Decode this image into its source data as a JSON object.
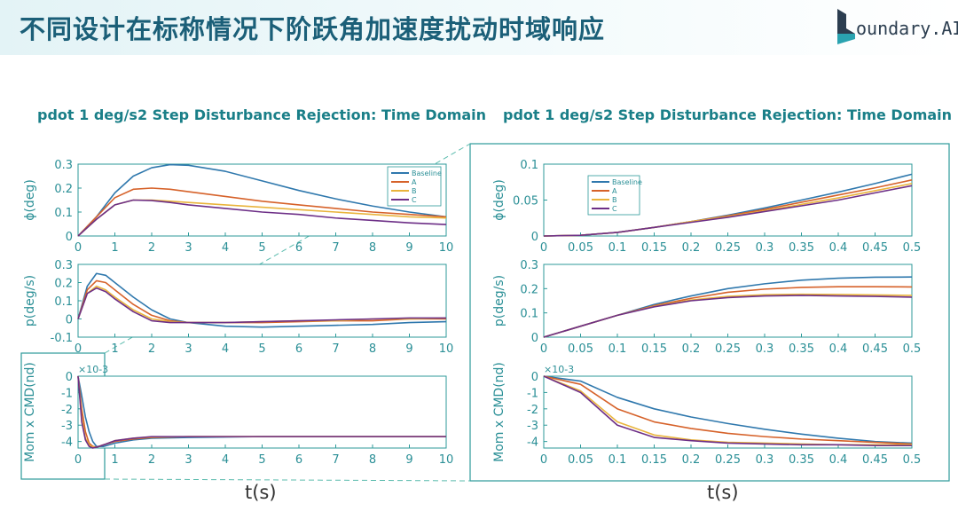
{
  "slide": {
    "title": "不同设计在标称情况下阶跃角加速度扰动时域响应",
    "logo_text": "oundary.AI"
  },
  "colors": {
    "Baseline": "#2f78ad",
    "A": "#d6622a",
    "B": "#e9b43c",
    "C": "#6d2f87",
    "axis": "#2c9a9a",
    "accent": "#1b5f78"
  },
  "chart_data": [
    {
      "panel": "left",
      "type": "line",
      "title": "pdot 1 deg/s2 Step Disturbance Rejection: Time Domain",
      "xlabel": "t(s)",
      "subplots": [
        {
          "ylabel": "ϕ(deg)",
          "xlim": [
            0,
            10
          ],
          "ylim": [
            0,
            0.3
          ],
          "yticks": [
            "0",
            "0.1",
            "0.2",
            "0.3"
          ],
          "xticks": [
            "0",
            "1",
            "2",
            "3",
            "4",
            "5",
            "6",
            "7",
            "8",
            "9",
            "10"
          ],
          "legend": [
            "Baseline",
            "A",
            "B",
            "C"
          ],
          "legend_position": "top-right",
          "x": [
            0,
            0.5,
            1,
            1.5,
            2,
            2.5,
            3,
            4,
            5,
            6,
            7,
            8,
            9,
            10
          ],
          "series": [
            {
              "name": "Baseline",
              "values": [
                0,
                0.08,
                0.18,
                0.25,
                0.285,
                0.298,
                0.295,
                0.27,
                0.23,
                0.19,
                0.155,
                0.125,
                0.1,
                0.08
              ]
            },
            {
              "name": "A",
              "values": [
                0,
                0.08,
                0.16,
                0.195,
                0.2,
                0.195,
                0.185,
                0.165,
                0.145,
                0.13,
                0.115,
                0.1,
                0.09,
                0.08
              ]
            },
            {
              "name": "B",
              "values": [
                0,
                0.07,
                0.13,
                0.15,
                0.15,
                0.145,
                0.14,
                0.13,
                0.12,
                0.11,
                0.1,
                0.09,
                0.08,
                0.075
              ]
            },
            {
              "name": "C",
              "values": [
                0,
                0.07,
                0.13,
                0.15,
                0.148,
                0.14,
                0.13,
                0.115,
                0.1,
                0.09,
                0.075,
                0.065,
                0.055,
                0.048
              ]
            }
          ]
        },
        {
          "ylabel": "p(deg/s)",
          "xlim": [
            0,
            10
          ],
          "ylim": [
            -0.1,
            0.3
          ],
          "yticks": [
            "-0.1",
            "0",
            "0.1",
            "0.2",
            "0.3"
          ],
          "xticks": [
            "0",
            "1",
            "2",
            "3",
            "4",
            "5",
            "6",
            "7",
            "8",
            "9",
            "10"
          ],
          "x": [
            0,
            0.25,
            0.5,
            0.75,
            1,
            1.5,
            2,
            2.5,
            3,
            4,
            5,
            6,
            7,
            8,
            9,
            10
          ],
          "series": [
            {
              "name": "Baseline",
              "values": [
                0,
                0.18,
                0.25,
                0.24,
                0.2,
                0.12,
                0.05,
                0,
                -0.02,
                -0.04,
                -0.045,
                -0.04,
                -0.035,
                -0.03,
                -0.02,
                -0.015
              ]
            },
            {
              "name": "A",
              "values": [
                0,
                0.16,
                0.21,
                0.2,
                0.16,
                0.08,
                0.02,
                -0.01,
                -0.02,
                -0.02,
                -0.02,
                -0.015,
                -0.01,
                -0.01,
                0,
                0
              ]
            },
            {
              "name": "B",
              "values": [
                0,
                0.14,
                0.18,
                0.16,
                0.12,
                0.05,
                0,
                -0.015,
                -0.02,
                -0.02,
                -0.015,
                -0.01,
                -0.01,
                0,
                0,
                0.005
              ]
            },
            {
              "name": "C",
              "values": [
                0,
                0.14,
                0.17,
                0.15,
                0.11,
                0.04,
                -0.01,
                -0.02,
                -0.02,
                -0.02,
                -0.015,
                -0.01,
                -0.005,
                0,
                0.005,
                0.005
              ]
            }
          ]
        },
        {
          "ylabel": "Mom x CMD(nd)",
          "scale": "×10-3",
          "xlim": [
            0,
            10
          ],
          "ylim": [
            -4.4,
            0
          ],
          "yticks": [
            "-4",
            "-3",
            "-2",
            "-1",
            "0"
          ],
          "xticks": [
            "0",
            "1",
            "2",
            "3",
            "4",
            "5",
            "6",
            "7",
            "8",
            "9",
            "10"
          ],
          "x": [
            0,
            0.1,
            0.2,
            0.3,
            0.4,
            0.5,
            0.7,
            1,
            1.5,
            2,
            3,
            5,
            10
          ],
          "series": [
            {
              "name": "Baseline",
              "values": [
                0,
                -1.2,
                -2.5,
                -3.4,
                -4.0,
                -4.3,
                -4.3,
                -4.1,
                -3.9,
                -3.8,
                -3.75,
                -3.7,
                -3.7
              ]
            },
            {
              "name": "A",
              "values": [
                0,
                -2,
                -3.4,
                -4.1,
                -4.3,
                -4.35,
                -4.2,
                -4.0,
                -3.85,
                -3.75,
                -3.7,
                -3.7,
                -3.7
              ]
            },
            {
              "name": "B",
              "values": [
                0,
                -2.6,
                -3.8,
                -4.2,
                -4.35,
                -4.35,
                -4.2,
                -3.95,
                -3.8,
                -3.72,
                -3.7,
                -3.7,
                -3.7
              ]
            },
            {
              "name": "C",
              "values": [
                0,
                -2.8,
                -3.9,
                -4.3,
                -4.4,
                -4.35,
                -4.2,
                -3.95,
                -3.8,
                -3.7,
                -3.7,
                -3.7,
                -3.7
              ]
            }
          ]
        }
      ]
    },
    {
      "panel": "right",
      "type": "line",
      "title": "pdot 1 deg/s2 Step Disturbance Rejection: Time Domain",
      "xlabel": "t(s)",
      "subplots": [
        {
          "ylabel": "ϕ(deg)",
          "xlim": [
            0,
            0.5
          ],
          "ylim": [
            0,
            0.1
          ],
          "yticks": [
            "0",
            "0.05",
            "0.1"
          ],
          "xticks": [
            "0",
            "0.05",
            "0.1",
            "0.15",
            "0.2",
            "0.25",
            "0.3",
            "0.35",
            "0.4",
            "0.45",
            "0.5"
          ],
          "legend": [
            "Baseline",
            "A",
            "B",
            "C"
          ],
          "legend_position": "top-left",
          "x": [
            0,
            0.05,
            0.1,
            0.15,
            0.2,
            0.25,
            0.3,
            0.35,
            0.4,
            0.45,
            0.5
          ],
          "series": [
            {
              "name": "Baseline",
              "values": [
                0,
                0.001,
                0.005,
                0.012,
                0.02,
                0.029,
                0.039,
                0.05,
                0.061,
                0.073,
                0.086
              ]
            },
            {
              "name": "A",
              "values": [
                0,
                0.001,
                0.005,
                0.012,
                0.02,
                0.028,
                0.037,
                0.047,
                0.057,
                0.067,
                0.078
              ]
            },
            {
              "name": "B",
              "values": [
                0,
                0.001,
                0.005,
                0.012,
                0.02,
                0.027,
                0.035,
                0.044,
                0.053,
                0.063,
                0.073
              ]
            },
            {
              "name": "C",
              "values": [
                0,
                0.001,
                0.005,
                0.012,
                0.019,
                0.026,
                0.034,
                0.042,
                0.05,
                0.06,
                0.07
              ]
            }
          ]
        },
        {
          "ylabel": "p(deg/s)",
          "xlim": [
            0,
            0.5
          ],
          "ylim": [
            0,
            0.3
          ],
          "yticks": [
            "0",
            "0.1",
            "0.2",
            "0.3"
          ],
          "xticks": [
            "0",
            "0.05",
            "0.1",
            "0.15",
            "0.2",
            "0.25",
            "0.3",
            "0.35",
            "0.4",
            "0.45",
            "0.5"
          ],
          "x": [
            0,
            0.05,
            0.1,
            0.15,
            0.2,
            0.25,
            0.3,
            0.35,
            0.4,
            0.45,
            0.5
          ],
          "series": [
            {
              "name": "Baseline",
              "values": [
                0,
                0.045,
                0.09,
                0.135,
                0.17,
                0.2,
                0.22,
                0.235,
                0.243,
                0.247,
                0.248
              ]
            },
            {
              "name": "A",
              "values": [
                0,
                0.045,
                0.09,
                0.13,
                0.16,
                0.185,
                0.198,
                0.205,
                0.208,
                0.208,
                0.207
              ]
            },
            {
              "name": "B",
              "values": [
                0,
                0.045,
                0.09,
                0.127,
                0.153,
                0.168,
                0.175,
                0.177,
                0.176,
                0.174,
                0.172
              ]
            },
            {
              "name": "C",
              "values": [
                0,
                0.045,
                0.09,
                0.125,
                0.15,
                0.163,
                0.17,
                0.172,
                0.17,
                0.168,
                0.165
              ]
            }
          ]
        },
        {
          "ylabel": "Mom x CMD(nd)",
          "scale": "×10-3",
          "xlim": [
            0,
            0.5
          ],
          "ylim": [
            -4.4,
            0
          ],
          "yticks": [
            "-4",
            "-3",
            "-2",
            "-1",
            "0"
          ],
          "xticks": [
            "0",
            "0.05",
            "0.1",
            "0.15",
            "0.2",
            "0.25",
            "0.3",
            "0.35",
            "0.4",
            "0.45",
            "0.5"
          ],
          "x": [
            0,
            0.05,
            0.1,
            0.15,
            0.2,
            0.25,
            0.3,
            0.35,
            0.4,
            0.45,
            0.5
          ],
          "series": [
            {
              "name": "Baseline",
              "values": [
                0,
                -0.3,
                -1.3,
                -2.0,
                -2.5,
                -2.9,
                -3.25,
                -3.55,
                -3.8,
                -4.0,
                -4.1
              ]
            },
            {
              "name": "A",
              "values": [
                0,
                -0.5,
                -2.0,
                -2.8,
                -3.2,
                -3.5,
                -3.7,
                -3.85,
                -3.95,
                -4.05,
                -4.15
              ]
            },
            {
              "name": "B",
              "values": [
                0,
                -0.9,
                -2.8,
                -3.6,
                -3.9,
                -4.05,
                -4.1,
                -4.15,
                -4.2,
                -4.2,
                -4.2
              ]
            },
            {
              "name": "C",
              "values": [
                0,
                -1.0,
                -3.0,
                -3.75,
                -3.95,
                -4.1,
                -4.15,
                -4.2,
                -4.2,
                -4.25,
                -4.25
              ]
            }
          ]
        }
      ]
    }
  ]
}
